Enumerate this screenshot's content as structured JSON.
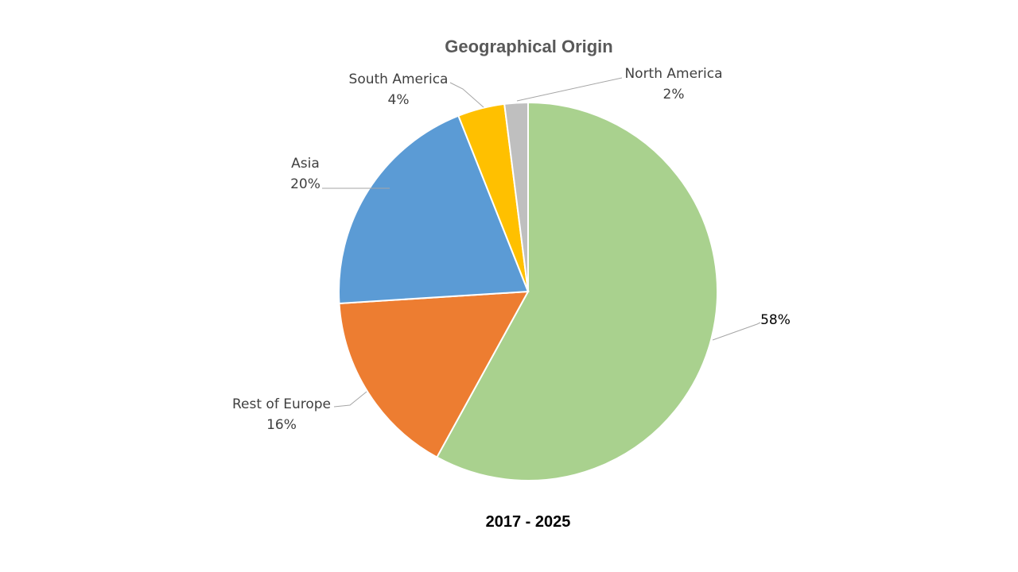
{
  "chart_data": {
    "type": "pie",
    "title": "Geographical Origin",
    "caption": "2017 - 2025",
    "slices": [
      {
        "category": "",
        "value": 58,
        "value_label": "58%",
        "color": "#A9D18E"
      },
      {
        "category": "Rest of Europe",
        "value": 16,
        "value_label": "16%",
        "color": "#ED7D31"
      },
      {
        "category": "Asia",
        "value": 20,
        "value_label": "20%",
        "color": "#5B9BD5"
      },
      {
        "category": "South America",
        "value": 4,
        "value_label": "4%",
        "color": "#FFC000"
      },
      {
        "category": "North America",
        "value": 2,
        "value_label": "2%",
        "color": "#BFBFBF"
      }
    ],
    "start_angle_deg": 0,
    "direction": "clockwise"
  }
}
